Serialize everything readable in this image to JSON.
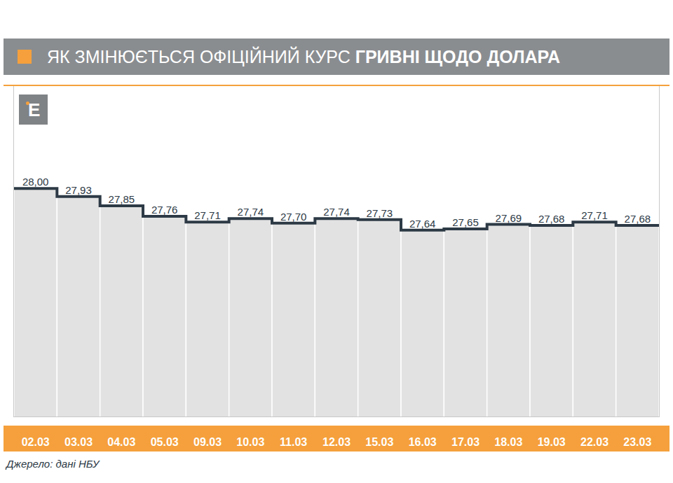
{
  "chart_data": {
    "type": "bar",
    "title": "ЯК ЗМІНЮЄТЬСЯ ОФІЦІЙНИЙ КУРС ГРИВНІ ЩОДО ДОЛАРА",
    "logo": "E",
    "source": "Джерело: дані НБУ",
    "categories": [
      "02.03",
      "03.03",
      "04.03",
      "05.03",
      "09.03",
      "10.03",
      "11.03",
      "12.03",
      "15.03",
      "16.03",
      "17.03",
      "18.03",
      "19.03",
      "22.03",
      "23.03"
    ],
    "values": [
      28.0,
      27.93,
      27.85,
      27.76,
      27.71,
      27.74,
      27.7,
      27.74,
      27.73,
      27.64,
      27.65,
      27.69,
      27.68,
      27.71,
      27.68
    ],
    "value_labels": [
      "28,00",
      "27,93",
      "27,85",
      "27,76",
      "27,71",
      "27,74",
      "27,70",
      "27,74",
      "27,73",
      "27,64",
      "27,65",
      "27,69",
      "27,68",
      "27,71",
      "27,68"
    ],
    "color": "#e2e2e2",
    "ylim": [
      26.03,
      28.89
    ],
    "yticks": [],
    "grid": false,
    "data_labels": true,
    "tick_labels": "x"
  }
}
